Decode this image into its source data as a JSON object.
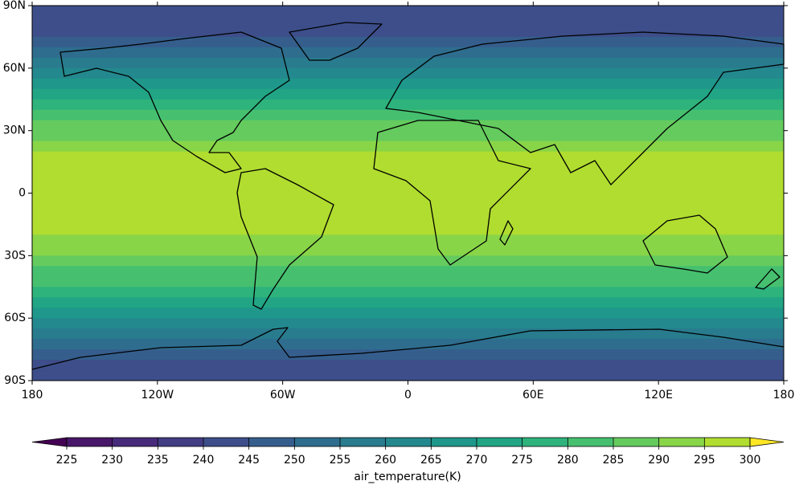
{
  "chart_data": {
    "type": "map",
    "xlim": [
      -180,
      180
    ],
    "ylim": [
      -90,
      90
    ],
    "xticks": [
      {
        "value": -180,
        "label": "180"
      },
      {
        "value": -120,
        "label": "120W"
      },
      {
        "value": -60,
        "label": "60W"
      },
      0,
      {
        "value": 60,
        "label": "60E"
      },
      {
        "value": 120,
        "label": "120E"
      },
      {
        "value": 180,
        "label": "180"
      }
    ],
    "yticks": [
      {
        "value": 90,
        "label": "90N"
      },
      {
        "value": 60,
        "label": "60N"
      },
      {
        "value": 30,
        "label": "30N"
      },
      0,
      {
        "value": -30,
        "label": "30S"
      },
      {
        "value": -60,
        "label": "60S"
      },
      {
        "value": -90,
        "label": "90S"
      }
    ],
    "lat_bins": [
      90,
      85,
      80,
      75,
      70,
      65,
      60,
      55,
      50,
      45,
      40,
      35,
      30,
      25,
      20,
      15,
      10,
      5,
      0,
      -5,
      -10,
      -15,
      -20,
      -25,
      -30,
      -35,
      -40,
      -45,
      -50,
      -55,
      -60,
      -65,
      -70,
      -75,
      -80,
      -85,
      -90
    ],
    "values": [
      240,
      240,
      242,
      245,
      250,
      255,
      262,
      268,
      272,
      277,
      282,
      286,
      289,
      292,
      295,
      297,
      298,
      299,
      299,
      298,
      297,
      295,
      292,
      290,
      287,
      284,
      280,
      276,
      272,
      268,
      263,
      258,
      253,
      248,
      244,
      242
    ],
    "colorbar": {
      "label": "air_temperature(K)",
      "ticks": [
        225,
        230,
        235,
        240,
        245,
        250,
        255,
        260,
        265,
        270,
        275,
        280,
        285,
        290,
        295,
        300
      ],
      "colors": [
        "#440154",
        "#481769",
        "#472a7a",
        "#433d84",
        "#3d4e8a",
        "#355e8d",
        "#2e6d8e",
        "#297b8e",
        "#23898e",
        "#1f978b",
        "#21a585",
        "#2eb37c",
        "#46c06f",
        "#65cb5e",
        "#89d548",
        "#b0dd2f",
        "#fde725"
      ]
    }
  }
}
